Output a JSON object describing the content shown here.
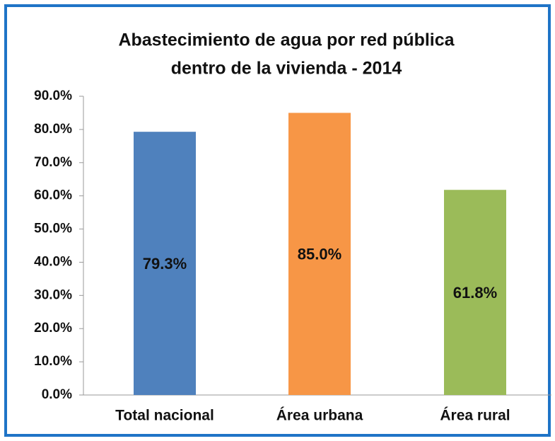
{
  "chart_data": {
    "type": "bar",
    "title": [
      "Abastecimiento de agua por red pública",
      "dentro de la vivienda - 2014"
    ],
    "categories": [
      "Total nacional",
      "Área urbana",
      "Área rural"
    ],
    "values": [
      79.3,
      85.0,
      61.8
    ],
    "value_labels": [
      "79.3%",
      "85.0%",
      "61.8%"
    ],
    "colors": [
      "#4f81bd",
      "#f79646",
      "#9bbb59"
    ],
    "ylim": [
      0,
      90
    ],
    "yticks": [
      {
        "value": 0,
        "label": "0.0%"
      },
      {
        "value": 10,
        "label": "10.0%"
      },
      {
        "value": 20,
        "label": "20.0%"
      },
      {
        "value": 30,
        "label": "30.0%"
      },
      {
        "value": 40,
        "label": "40.0%"
      },
      {
        "value": 50,
        "label": "50.0%"
      },
      {
        "value": 60,
        "label": "60.0%"
      },
      {
        "value": 70,
        "label": "70.0%"
      },
      {
        "value": 80,
        "label": "80.0%"
      },
      {
        "value": 90,
        "label": "90.0%"
      }
    ],
    "grid": false
  }
}
